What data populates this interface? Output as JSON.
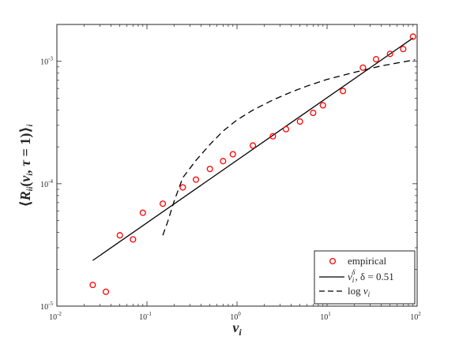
{
  "chart_data": {
    "type": "scatter",
    "xscale": "log",
    "yscale": "log",
    "xlim": [
      0.01,
      100
    ],
    "ylim": [
      1e-05,
      0.002
    ],
    "xlabel": "v_i",
    "ylabel": "⟨R_ii(v_i, τ = 1)⟩_i",
    "grid": false,
    "legend_position": "bottom-right",
    "x_ticks": [
      {
        "value": 0.01,
        "base": "10",
        "exp": "-2"
      },
      {
        "value": 0.1,
        "base": "10",
        "exp": "-1"
      },
      {
        "value": 1,
        "base": "10",
        "exp": "0"
      },
      {
        "value": 10,
        "base": "10",
        "exp": "1"
      },
      {
        "value": 100,
        "base": "10",
        "exp": "2"
      }
    ],
    "y_ticks": [
      {
        "value": 1e-05,
        "base": "10",
        "exp": "-5"
      },
      {
        "value": 0.0001,
        "base": "10",
        "exp": "-4"
      },
      {
        "value": 0.001,
        "base": "10",
        "exp": "-3"
      }
    ],
    "series": [
      {
        "name": "empirical",
        "kind": "markers",
        "color": "#ff0000",
        "points": [
          {
            "x": 0.025,
            "y": 1.49e-05
          },
          {
            "x": 0.035,
            "y": 1.31e-05
          },
          {
            "x": 0.05,
            "y": 3.79e-05
          },
          {
            "x": 0.07,
            "y": 3.51e-05
          },
          {
            "x": 0.09,
            "y": 5.79e-05
          },
          {
            "x": 0.15,
            "y": 6.87e-05
          },
          {
            "x": 0.25,
            "y": 9.33e-05
          },
          {
            "x": 0.35,
            "y": 0.000108
          },
          {
            "x": 0.5,
            "y": 0.000132
          },
          {
            "x": 0.7,
            "y": 0.000153
          },
          {
            "x": 0.9,
            "y": 0.000174
          },
          {
            "x": 1.5,
            "y": 0.000205
          },
          {
            "x": 2.5,
            "y": 0.000244
          },
          {
            "x": 3.5,
            "y": 0.000279
          },
          {
            "x": 5,
            "y": 0.000322
          },
          {
            "x": 7,
            "y": 0.000379
          },
          {
            "x": 9,
            "y": 0.000437
          },
          {
            "x": 15,
            "y": 0.000572
          },
          {
            "x": 25,
            "y": 0.000887
          },
          {
            "x": 35,
            "y": 0.00104
          },
          {
            "x": 50,
            "y": 0.00115
          },
          {
            "x": 70,
            "y": 0.00126
          },
          {
            "x": 90,
            "y": 0.00159
          }
        ]
      },
      {
        "name": "v_i^δ, δ = 0.51",
        "kind": "line",
        "dash": "solid",
        "color": "#000000",
        "points": [
          {
            "x": 0.025,
            "y": 2.36e-05
          },
          {
            "x": 90,
            "y": 0.00155
          }
        ]
      },
      {
        "name": "log v_i",
        "kind": "line",
        "dash": "dashed",
        "color": "#000000",
        "points": [
          {
            "x": 0.15,
            "y": 3.79e-05
          },
          {
            "x": 0.17,
            "y": 4.9e-05
          },
          {
            "x": 0.2,
            "y": 7.17e-05
          },
          {
            "x": 0.25,
            "y": 0.000112
          },
          {
            "x": 0.35,
            "y": 0.000155
          },
          {
            "x": 0.5,
            "y": 0.000209
          },
          {
            "x": 0.7,
            "y": 0.000269
          },
          {
            "x": 1,
            "y": 0.000332
          },
          {
            "x": 1.5,
            "y": 0.000399
          },
          {
            "x": 2.5,
            "y": 0.000483
          },
          {
            "x": 4,
            "y": 0.000561
          },
          {
            "x": 6,
            "y": 0.000628
          },
          {
            "x": 10,
            "y": 0.000712
          },
          {
            "x": 20,
            "y": 0.000812
          },
          {
            "x": 40,
            "y": 0.000917
          },
          {
            "x": 95,
            "y": 0.00103
          }
        ]
      }
    ]
  },
  "legend": {
    "items": [
      {
        "label": "empirical",
        "symbol": "circle"
      },
      {
        "label_main": "v",
        "label_sub": "i",
        "label_sup": "δ",
        "label_rest": ", δ = 0.51",
        "symbol": "solid"
      },
      {
        "label_prefix": "log ",
        "label_main": "v",
        "label_sub": "i",
        "symbol": "dashed"
      }
    ]
  },
  "axes": {
    "xlabel_main": "v",
    "xlabel_sub": "i",
    "ylabel_open": "⟨",
    "ylabel_main": "R",
    "ylabel_sub": "ii",
    "ylabel_args_open": "(",
    "ylabel_v": "v",
    "ylabel_v_sub": "i",
    "ylabel_mid": ", ",
    "ylabel_tau": "τ",
    "ylabel_eq": " = 1)",
    "ylabel_close": "⟩",
    "ylabel_close_sub": "i"
  }
}
